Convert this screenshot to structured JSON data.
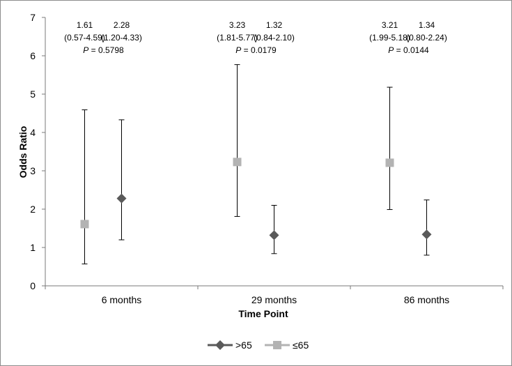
{
  "chart_data": {
    "type": "scatter",
    "title": "",
    "xlabel": "Time Point",
    "ylabel": "Odds Ratio",
    "ylim": [
      0,
      7
    ],
    "yticks": [
      0,
      1,
      2,
      3,
      4,
      5,
      6,
      7
    ],
    "grid": false,
    "legend_position": "bottom",
    "categories": [
      "6 months",
      "29 months",
      "86 months"
    ],
    "series": [
      {
        "name": "≤65",
        "marker": "square",
        "color": "#b3b3b3",
        "values": [
          1.61,
          3.23,
          3.21
        ],
        "lower": [
          0.57,
          1.81,
          1.99
        ],
        "upper": [
          4.59,
          5.77,
          5.18
        ],
        "value_labels": [
          "1.61",
          "3.23",
          "3.21"
        ],
        "ci_labels": [
          "(0.57-4.59)",
          "(1.81-5.77)",
          "(1.99-5.18)"
        ]
      },
      {
        "name": ">65",
        "marker": "diamond",
        "color": "#5a5a5a",
        "values": [
          2.28,
          1.32,
          1.34
        ],
        "lower": [
          1.2,
          0.84,
          0.8
        ],
        "upper": [
          4.33,
          2.1,
          2.24
        ],
        "value_labels": [
          "2.28",
          "1.32",
          "1.34"
        ],
        "ci_labels": [
          "(1.20-4.33)",
          "(0.84-2.10)",
          "(0.80-2.24)"
        ]
      }
    ],
    "p_values": [
      "0.5798",
      "0.0179",
      "0.0144"
    ],
    "p_prefix": "P",
    "p_separator": " = ",
    "legend_order": [
      ">65",
      "≤65"
    ]
  }
}
